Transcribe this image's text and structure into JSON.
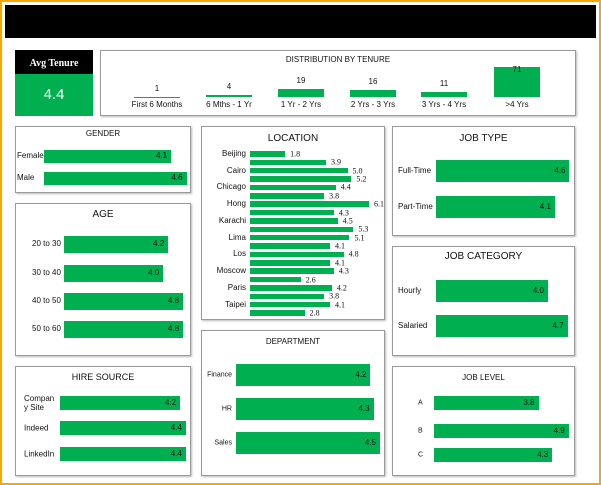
{
  "chart_data": [
    {
      "type": "kpi",
      "title": "Avg Tenure",
      "value": 4.4,
      "color": "#00b050"
    },
    {
      "type": "column",
      "title": "DISTRIBUTION BY TENURE",
      "categories": [
        "First 6 Months",
        "6 Mths - 1 Yr",
        "1 Yr - 2 Yrs",
        "2 Yrs - 3 Yrs",
        "3 Yrs - 4 Yrs",
        ">4 Yrs"
      ],
      "values": [
        1,
        4,
        19,
        16,
        11,
        71
      ],
      "color": "#00b050"
    },
    {
      "type": "bar",
      "title": "GENDER",
      "categories": [
        "Female",
        "Male"
      ],
      "values": [
        4.1,
        4.6
      ],
      "color": "#00b050"
    },
    {
      "type": "bar",
      "title": "AGE",
      "categories": [
        "20 to 30",
        "30 to 40",
        "40 to 50",
        "50 to 60"
      ],
      "values": [
        4.2,
        4.0,
        4.8,
        4.8
      ],
      "value_labels": [
        "4.2",
        "4.0",
        "4.8",
        "4.8"
      ],
      "color": "#00b050"
    },
    {
      "type": "bar",
      "title": "HIRE SOURCE",
      "categories": [
        "Company Site",
        "Indeed",
        "LinkedIn"
      ],
      "values": [
        4.2,
        4.4,
        4.4
      ],
      "color": "#00b050"
    },
    {
      "type": "bar",
      "title": "LOCATION",
      "categories": [
        "Beijing",
        null,
        "Cairo",
        null,
        "Chicago",
        null,
        "Hong",
        null,
        "Karachi",
        null,
        "Lima",
        null,
        "Los",
        null,
        "Moscow",
        null,
        "Paris",
        null,
        "Taipei",
        null
      ],
      "values": [
        1.8,
        3.9,
        5.0,
        5.2,
        4.4,
        3.8,
        6.1,
        4.3,
        4.5,
        5.3,
        5.1,
        4.1,
        4.8,
        4.1,
        4.3,
        2.6,
        4.2,
        3.8,
        4.1,
        2.8
      ],
      "value_labels": [
        "1.8",
        "3.9",
        "5.0",
        "5.2",
        "4.4",
        "3.8",
        "6.1",
        "4.3",
        "4.5",
        "5.3",
        "5.1",
        "4.1",
        "4.8",
        "4.1",
        "4.3",
        "2.6",
        "4.2",
        "3.8",
        "4.1",
        "2.8"
      ],
      "color": "#00b050"
    },
    {
      "type": "bar",
      "title": "DEPARTMENT",
      "categories": [
        "Finance",
        "HR",
        "Sales"
      ],
      "values": [
        4.2,
        4.3,
        4.5
      ],
      "color": "#00b050"
    },
    {
      "type": "bar",
      "title": "JOB TYPE",
      "categories": [
        "Full-Time",
        "Part-Time"
      ],
      "values": [
        4.6,
        4.1
      ],
      "color": "#00b050"
    },
    {
      "type": "bar",
      "title": "JOB CATEGORY",
      "categories": [
        "Hourly",
        "Salaried"
      ],
      "values": [
        4.0,
        4.7
      ],
      "value_labels": [
        "4.0",
        "4.7"
      ],
      "color": "#00b050"
    },
    {
      "type": "bar",
      "title": "JOB LEVEL",
      "categories": [
        "A",
        "B",
        "C"
      ],
      "values": [
        3.8,
        4.9,
        4.3
      ],
      "color": "#00b050"
    }
  ]
}
